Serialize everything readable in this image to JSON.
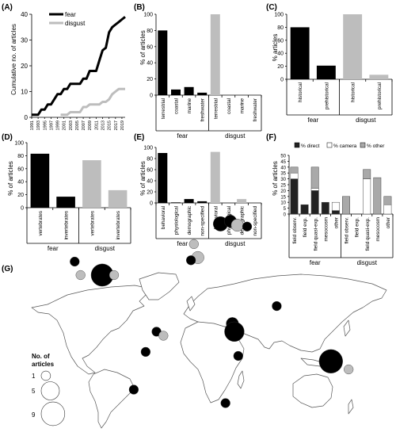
{
  "colors": {
    "fear": "#000000",
    "disgust": "#bdbdbd",
    "direct": "#222222",
    "camera": "#ffffff",
    "other": "#a9a9a9",
    "land": "#ffffff",
    "border": "#666666"
  },
  "group_labels": {
    "fear": "fear",
    "disgust": "disgust"
  },
  "panel_labels": {
    "A": "(A)",
    "B": "(B)",
    "C": "(C)",
    "D": "(D)",
    "E": "(E)",
    "F": "(F)",
    "G": "(G)"
  },
  "map_legend": {
    "title_line1": "No. of",
    "title_line2": "articles",
    "sizes": [
      1,
      5,
      9
    ],
    "labels": [
      "1",
      "5",
      "9"
    ]
  },
  "chart_data": [
    {
      "id": "A",
      "type": "line",
      "ylabel": "Cumulative no. of articles",
      "ylim": [
        0,
        40
      ],
      "yticks": [
        0,
        10,
        20,
        30,
        40
      ],
      "xticks": [
        "1991",
        "1993",
        "1995",
        "1997",
        "1999",
        "2001",
        "2003",
        "2005",
        "2007",
        "2009",
        "2011",
        "2013",
        "2015",
        "2017",
        "2019"
      ],
      "x": [
        1991,
        1992,
        1993,
        1994,
        1995,
        1996,
        1997,
        1998,
        1999,
        2000,
        2001,
        2002,
        2003,
        2004,
        2005,
        2006,
        2007,
        2008,
        2009,
        2010,
        2011,
        2012,
        2013,
        2014,
        2015,
        2016,
        2017,
        2018,
        2019,
        2020
      ],
      "series": [
        {
          "name": "fear",
          "color": "#000000",
          "values": [
            1,
            1,
            1,
            3,
            3,
            5,
            5,
            7,
            9,
            9,
            11,
            11,
            13,
            13,
            13,
            13,
            15,
            15,
            18,
            18,
            18,
            22,
            26,
            27,
            33,
            35,
            36,
            37,
            38,
            39
          ]
        },
        {
          "name": "disgust",
          "color": "#bdbdbd",
          "values": [
            null,
            null,
            null,
            null,
            null,
            null,
            null,
            null,
            null,
            1,
            1,
            1,
            2,
            2,
            2,
            2,
            4,
            4,
            5,
            5,
            5,
            5,
            6,
            6,
            7,
            9,
            10,
            11,
            11,
            11
          ]
        }
      ],
      "legend": "top-right"
    },
    {
      "id": "B",
      "type": "bar",
      "ylabel": "% of articles",
      "ylim": [
        0,
        100
      ],
      "yticks": [
        0,
        20,
        40,
        60,
        80,
        100
      ],
      "categories": [
        "terrestrial",
        "coastal",
        "marine",
        "freshwater",
        "terrestrial",
        "coastal",
        "marine",
        "freshwater"
      ],
      "groups": [
        "fear",
        "fear",
        "fear",
        "fear",
        "disgust",
        "disgust",
        "disgust",
        "disgust"
      ],
      "values": [
        80,
        7,
        10,
        3,
        100,
        0,
        0,
        0
      ]
    },
    {
      "id": "C",
      "type": "bar",
      "ylabel": "% articles",
      "ylim": [
        0,
        100
      ],
      "yticks": [
        0,
        20,
        40,
        60,
        80,
        100
      ],
      "categories": [
        "historical",
        "prehistorical",
        "historical",
        "prehistorical"
      ],
      "groups": [
        "fear",
        "fear",
        "disgust",
        "disgust"
      ],
      "values": [
        80,
        21,
        100,
        7
      ]
    },
    {
      "id": "D",
      "type": "bar",
      "ylabel": "% of articles",
      "ylim": [
        0,
        100
      ],
      "yticks": [
        0,
        20,
        40,
        60,
        80,
        100
      ],
      "categories": [
        "vertebrates",
        "invertebrates",
        "vertebrates",
        "invertebrates"
      ],
      "groups": [
        "fear",
        "fear",
        "disgust",
        "disgust"
      ],
      "values": [
        83,
        17,
        73,
        27
      ]
    },
    {
      "id": "E",
      "type": "bar",
      "ylabel": "% of articles",
      "ylim": [
        0,
        100
      ],
      "yticks": [
        0,
        20,
        40,
        60,
        80,
        100
      ],
      "categories": [
        "behavioral",
        "physiological",
        "demographic",
        "non-specified",
        "behavioral",
        "physiological",
        "demographic",
        "non-specified"
      ],
      "groups": [
        "fear",
        "fear",
        "fear",
        "fear",
        "disgust",
        "disgust",
        "disgust",
        "disgust"
      ],
      "values": [
        90,
        1,
        7,
        3,
        92,
        0,
        7,
        0
      ]
    },
    {
      "id": "F",
      "type": "bar",
      "stacked": true,
      "ylabel": "% of articles",
      "ylim": [
        0,
        50
      ],
      "yticks": [
        0,
        5,
        10,
        15,
        20,
        25,
        30,
        35,
        40,
        45,
        50
      ],
      "categories": [
        "field observ.",
        "field exp.",
        "field quasi-exp.",
        "mesocosm",
        "other",
        "field observ.",
        "field exp.",
        "field quasi-exp.",
        "mesocosm",
        "other"
      ],
      "groups": [
        "fear",
        "fear",
        "fear",
        "fear",
        "fear",
        "disgust",
        "disgust",
        "disgust",
        "disgust",
        "disgust"
      ],
      "series": [
        {
          "name": "% direct",
          "values": [
            30,
            8,
            20,
            10,
            3,
            0,
            0,
            0,
            0,
            0
          ]
        },
        {
          "name": "% camera",
          "values": [
            5,
            0,
            2,
            0,
            7,
            0,
            0,
            30,
            0,
            8
          ]
        },
        {
          "name": "% other",
          "values": [
            5,
            0,
            18,
            0,
            0,
            15,
            0,
            8,
            31,
            7
          ]
        }
      ],
      "legend": "top"
    }
  ],
  "map_bubbles": [
    {
      "lon": -100,
      "lat": 40,
      "n": 8,
      "group": "fear"
    },
    {
      "lon": -88,
      "lat": 40,
      "n": 1,
      "group": "disgust"
    },
    {
      "lon": -128,
      "lat": 50,
      "n": 1,
      "group": "fear"
    },
    {
      "lon": -122,
      "lat": 40,
      "n": 1,
      "group": "disgust"
    },
    {
      "lon": -3,
      "lat": 53,
      "n": 2,
      "group": "disgust"
    },
    {
      "lon": -10,
      "lat": 51,
      "n": 1,
      "group": "fear"
    },
    {
      "lon": -7,
      "lat": 63,
      "n": 1,
      "group": "disgust"
    },
    {
      "lon": 20,
      "lat": 78,
      "n": 3,
      "group": "fear"
    },
    {
      "lon": 30,
      "lat": 80,
      "n": 2,
      "group": "fear"
    },
    {
      "lon": 37,
      "lat": 77,
      "n": 2,
      "group": "disgust"
    },
    {
      "lon": 47,
      "lat": 76,
      "n": 1,
      "group": "fear"
    },
    {
      "lon": 77,
      "lat": 17,
      "n": 1,
      "group": "fear"
    },
    {
      "lon": 32,
      "lat": 4,
      "n": 2,
      "group": "fear"
    },
    {
      "lon": 34,
      "lat": -2,
      "n": 6,
      "group": "fear"
    },
    {
      "lon": 38,
      "lat": -20,
      "n": 1,
      "group": "fear"
    },
    {
      "lon": 25,
      "lat": -55,
      "n": 1,
      "group": "fear"
    },
    {
      "lon": -45,
      "lat": -2,
      "n": 1,
      "group": "fear"
    },
    {
      "lon": -38,
      "lat": -5,
      "n": 1,
      "group": "disgust"
    },
    {
      "lon": -56,
      "lat": -17,
      "n": 1,
      "group": "fear"
    },
    {
      "lon": -68,
      "lat": -45,
      "n": 1,
      "group": "fear"
    },
    {
      "lon": 132,
      "lat": -24,
      "n": 9,
      "group": "fear"
    },
    {
      "lon": 150,
      "lat": -30,
      "n": 1,
      "group": "disgust"
    }
  ]
}
